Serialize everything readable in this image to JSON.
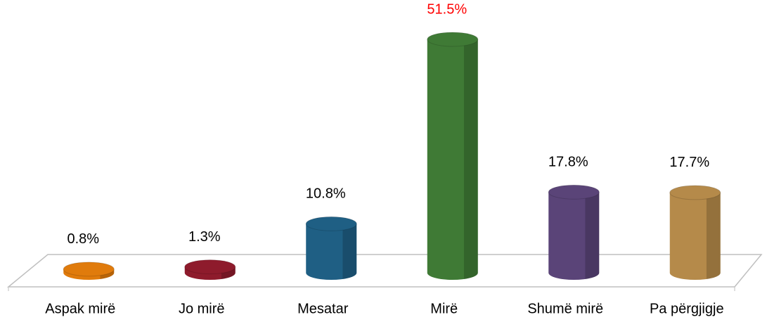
{
  "chart_data": {
    "type": "bar3d",
    "categories": [
      "Aspak mirë",
      "Jo mirë",
      "Mesatar",
      "Mirë",
      "Shumë mirë",
      "Pa përgjigje"
    ],
    "values": [
      0.8,
      1.3,
      10.8,
      51.5,
      17.8,
      17.7
    ],
    "value_labels": [
      "0.8%",
      "1.3%",
      "10.8%",
      "51.5%",
      "17.8%",
      "17.7%"
    ],
    "colors": [
      "#e07b0c",
      "#8e1b2c",
      "#1f5f84",
      "#3f7a35",
      "#5a4478",
      "#b58a4a"
    ],
    "value_label_colors": [
      "#000000",
      "#000000",
      "#000000",
      "#ff0000",
      "#000000",
      "#000000"
    ]
  }
}
